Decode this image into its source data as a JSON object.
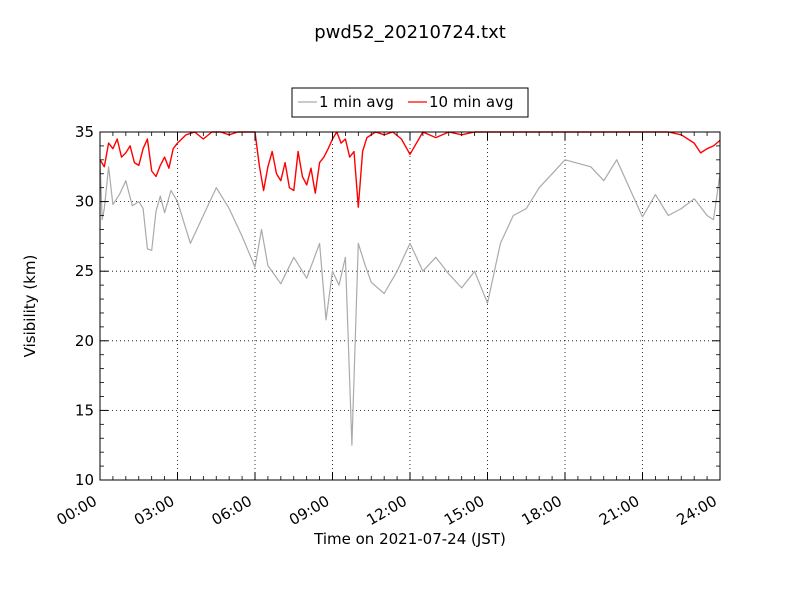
{
  "chart_data": {
    "type": "line",
    "title": "pwd52_20210724.txt",
    "xlabel": "Time on 2021-07-24 (JST)",
    "ylabel": "Visibility (km)",
    "xlim": [
      "00:00",
      "24:00"
    ],
    "ylim": [
      10,
      35
    ],
    "x_ticks": [
      "00:00",
      "03:00",
      "06:00",
      "09:00",
      "12:00",
      "15:00",
      "18:00",
      "21:00",
      "24:00"
    ],
    "y_ticks": [
      10,
      15,
      20,
      25,
      30,
      35
    ],
    "grid": true,
    "legend_position": "top-center",
    "series": [
      {
        "name": "1 min avg",
        "color": "#aaaaaa",
        "x": [
          "00:00",
          "00:05",
          "00:10",
          "00:20",
          "00:30",
          "00:45",
          "01:00",
          "01:15",
          "01:30",
          "01:40",
          "01:50",
          "02:00",
          "02:10",
          "02:20",
          "02:30",
          "02:45",
          "03:00",
          "03:30",
          "04:00",
          "04:30",
          "05:00",
          "05:30",
          "06:00",
          "06:15",
          "06:30",
          "07:00",
          "07:30",
          "08:00",
          "08:30",
          "08:45",
          "09:00",
          "09:15",
          "09:30",
          "09:45",
          "10:00",
          "10:15",
          "10:30",
          "11:00",
          "11:30",
          "12:00",
          "12:30",
          "13:00",
          "13:30",
          "14:00",
          "14:30",
          "15:00",
          "15:30",
          "16:00",
          "16:30",
          "17:00",
          "17:30",
          "18:00",
          "19:00",
          "19:30",
          "20:00",
          "21:00",
          "21:30",
          "22:00",
          "22:30",
          "23:00",
          "23:30",
          "23:45",
          "24:00"
        ],
        "y": [
          33.0,
          28.7,
          29.5,
          32.5,
          29.8,
          30.5,
          31.5,
          29.7,
          30.0,
          29.5,
          26.6,
          26.5,
          29.3,
          30.4,
          29.2,
          30.8,
          30.0,
          27.0,
          29.0,
          31.0,
          29.5,
          27.5,
          25.3,
          28.0,
          25.4,
          24.1,
          26.0,
          24.5,
          27.0,
          21.5,
          25.0,
          24.0,
          26.0,
          12.5,
          27.0,
          25.5,
          24.2,
          23.4,
          25.0,
          27.0,
          25.0,
          26.0,
          24.8,
          23.8,
          25.0,
          22.7,
          27.0,
          29.0,
          29.5,
          31.0,
          32.0,
          33.0,
          32.5,
          31.5,
          33.0,
          28.9,
          30.5,
          29.0,
          29.5,
          30.2,
          29.0,
          28.7,
          32.0
        ]
      },
      {
        "name": "10 min avg",
        "color": "#ff0000",
        "x": [
          "00:00",
          "00:10",
          "00:20",
          "00:30",
          "00:40",
          "00:50",
          "01:00",
          "01:10",
          "01:20",
          "01:30",
          "01:40",
          "01:50",
          "02:00",
          "02:10",
          "02:20",
          "02:30",
          "02:40",
          "02:50",
          "03:00",
          "03:20",
          "03:40",
          "04:00",
          "04:20",
          "04:40",
          "05:00",
          "05:20",
          "05:40",
          "06:00",
          "06:10",
          "06:20",
          "06:30",
          "06:40",
          "06:50",
          "07:00",
          "07:10",
          "07:20",
          "07:30",
          "07:40",
          "07:50",
          "08:00",
          "08:10",
          "08:20",
          "08:30",
          "08:40",
          "08:50",
          "09:00",
          "09:10",
          "09:20",
          "09:30",
          "09:40",
          "09:50",
          "10:00",
          "10:10",
          "10:20",
          "10:40",
          "11:00",
          "11:20",
          "11:40",
          "12:00",
          "12:30",
          "13:00",
          "13:30",
          "14:00",
          "14:30",
          "15:00",
          "15:30",
          "16:00",
          "17:00",
          "18:00",
          "19:00",
          "20:00",
          "21:00",
          "22:00",
          "22:30",
          "23:00",
          "23:15",
          "23:30",
          "23:45",
          "24:00"
        ],
        "y": [
          33.0,
          32.5,
          34.2,
          33.8,
          34.5,
          33.2,
          33.5,
          34.0,
          32.8,
          32.6,
          33.8,
          34.5,
          32.2,
          31.8,
          32.6,
          33.2,
          32.4,
          33.8,
          34.2,
          34.8,
          35.0,
          34.5,
          35.0,
          35.0,
          34.8,
          35.0,
          35.0,
          35.0,
          32.6,
          30.8,
          32.5,
          33.6,
          32.0,
          31.5,
          32.8,
          31.0,
          30.8,
          33.6,
          31.8,
          31.2,
          32.4,
          30.6,
          32.8,
          33.2,
          33.8,
          34.5,
          35.0,
          34.2,
          34.5,
          33.2,
          33.6,
          29.6,
          33.6,
          34.6,
          35.0,
          34.8,
          35.0,
          34.5,
          33.4,
          35.0,
          34.6,
          35.0,
          34.8,
          35.0,
          35.0,
          35.0,
          35.0,
          35.0,
          35.0,
          35.0,
          35.0,
          35.0,
          35.0,
          34.8,
          34.2,
          33.5,
          33.8,
          34.0,
          34.4
        ]
      }
    ]
  }
}
